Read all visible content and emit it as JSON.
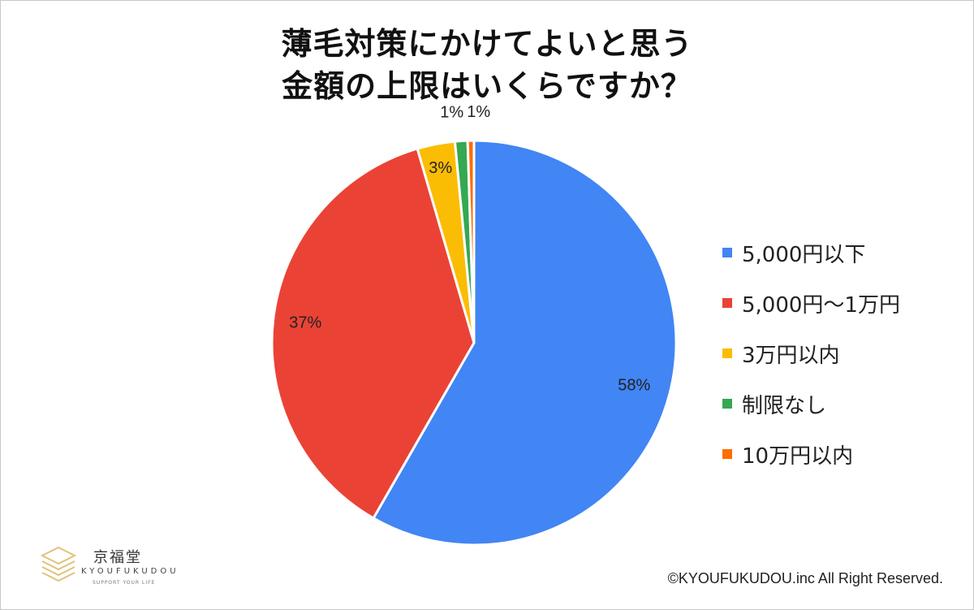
{
  "chart_data": {
    "type": "pie",
    "title": [
      "薄毛対策にかけてよいと思う",
      "金額の上限はいくらですか？"
    ],
    "slices": [
      {
        "label": "5,000円以下",
        "value": 58,
        "display": "58%",
        "color": "#4285f4"
      },
      {
        "label": "5,000円～1万円",
        "value": 37,
        "display": "37%",
        "color": "#ea4335"
      },
      {
        "label": "3万円以内",
        "value": 3,
        "display": "3%",
        "color": "#fbbc04"
      },
      {
        "label": "制限なし",
        "value": 1,
        "display": "1%",
        "color": "#34a853"
      },
      {
        "label": "10万円以内",
        "value": 0.5,
        "display": "1%",
        "color": "#ff6d01"
      }
    ],
    "legend_position": "right"
  },
  "logo": {
    "name": "京福堂",
    "roman": "KYOUFUKUDOU",
    "tagline": "SUPPORT YOUR LIFE"
  },
  "copyright": "©KYOUFUKUDOU.inc All Right Reserved."
}
